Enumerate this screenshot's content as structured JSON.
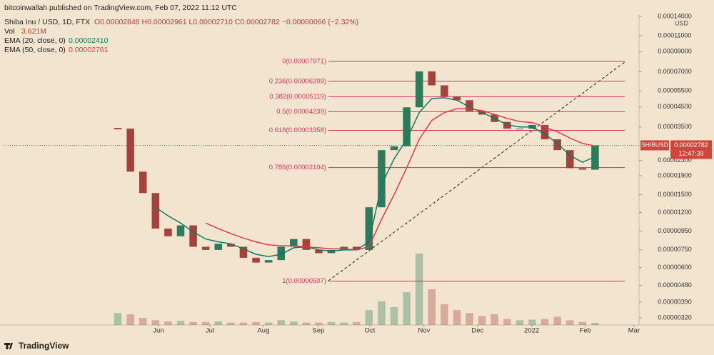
{
  "header": {
    "publisher": "bitcoinwallah published on TradingView.com, Feb 07, 2022 11:12 UTC",
    "symbol": "Shiba Inu / USD, 1D, FTX",
    "ohlc": "O0.00002848 H0.00002961 L0.00002710 C0.00002782 −0.00000066 (−2.32%)",
    "vol_label": "Vol",
    "vol_value": "3.621M",
    "ema20_label": "EMA (20, close, 0)",
    "ema20_value": "0.00002410",
    "ema50_label": "EMA (50, close, 0)",
    "ema50_value": "0.00002761"
  },
  "footer": {
    "brand": "TradingView"
  },
  "chart_data": {
    "type": "candlestick",
    "axis_unit": "USD",
    "price_tag": {
      "symbol": "SHIBUSD",
      "price": "0.00002782",
      "countdown": "12:47:39",
      "value": 2.782e-05
    },
    "categories": [
      null,
      null,
      null,
      null,
      null,
      null,
      null,
      null,
      null,
      null,
      null,
      null,
      null,
      null,
      null,
      null,
      null,
      null,
      null,
      null,
      null,
      null,
      null,
      null,
      null,
      null,
      null,
      null,
      null,
      null,
      null,
      null,
      null,
      null,
      null,
      null,
      null,
      null,
      null
    ],
    "xlim": [
      -9.1,
      41.5
    ],
    "xticks": [
      {
        "value": 3.24,
        "label": "Jun"
      },
      {
        "value": 7.33,
        "label": "Jul"
      },
      {
        "value": 11.59,
        "label": "Aug"
      },
      {
        "value": 15.97,
        "label": "Sep"
      },
      {
        "value": 20.06,
        "label": "Oct"
      },
      {
        "value": 24.38,
        "label": "Nov"
      },
      {
        "value": 28.64,
        "label": "Dec"
      },
      {
        "value": 32.95,
        "label": "2022"
      },
      {
        "value": 37.22,
        "label": "Feb"
      },
      {
        "value": 41.1,
        "label": "Mar"
      }
    ],
    "log_scale": true,
    "ylim": [
      3.2e-06,
      0.00014
    ],
    "yticks": [
      {
        "value": 0.00014,
        "label": "0.00014000"
      },
      {
        "value": 0.00011,
        "label": "0.00011000"
      },
      {
        "value": 9e-05,
        "label": "0.00009000"
      },
      {
        "value": 7e-05,
        "label": "0.00007000"
      },
      {
        "value": 5.5e-05,
        "label": "0.00005500"
      },
      {
        "value": 4.5e-05,
        "label": "0.00004500"
      },
      {
        "value": 3.5e-05,
        "label": "0.00003500"
      },
      {
        "value": 2.3e-05,
        "label": "0.00002300"
      },
      {
        "value": 1.9e-05,
        "label": "0.00001900"
      },
      {
        "value": 1.5e-05,
        "label": "0.00001500"
      },
      {
        "value": 1.2e-05,
        "label": "0.00001200"
      },
      {
        "value": 9.5e-06,
        "label": "0.00000950"
      },
      {
        "value": 7.5e-06,
        "label": "0.00000750"
      },
      {
        "value": 6e-06,
        "label": "0.00000600"
      },
      {
        "value": 4.8e-06,
        "label": "0.00000480"
      },
      {
        "value": 3.9e-06,
        "label": "0.00000390"
      },
      {
        "value": 3.2e-06,
        "label": "0.00000320"
      }
    ],
    "up_color": "#2e7a5c",
    "down_color": "#a4423c",
    "series": [
      {
        "name": "Close",
        "values": [
          3.43e-05,
          2e-05,
          1.53e-05,
          9.8e-06,
          8.9e-06,
          1.02e-05,
          7.8e-06,
          7.5e-06,
          8.1e-06,
          7.8e-06,
          6.8e-06,
          6.4e-06,
          6.6e-06,
          7.8e-06,
          8.6e-06,
          7.5e-06,
          7.2e-06,
          7.5e-06,
          7.8e-06,
          7.5e-06,
          1.28e-05,
          2.62e-05,
          2.75e-05,
          4.48e-05,
          7.03e-05,
          5.9e-05,
          5.14e-05,
          4.9e-05,
          4.27e-05,
          4.09e-05,
          3.73e-05,
          3.43e-05,
          3.43e-05,
          3.59e-05,
          3e-05,
          2.62e-05,
          2.09e-05,
          2.05e-05,
          2.782e-05
        ]
      },
      {
        "name": "EMA (20, close, 0)",
        "color": "#0f7a63",
        "values": [
          null,
          null,
          null,
          1.28e-05,
          1.15e-05,
          1.05e-05,
          9.4e-06,
          8.6e-06,
          8.3e-06,
          8.1e-06,
          7.6e-06,
          7.1e-06,
          6.9e-06,
          7.1e-06,
          7.7e-06,
          7.8e-06,
          7.5e-06,
          7.4e-06,
          7.5e-06,
          7.5e-06,
          8.3e-06,
          1.7e-05,
          2.35e-05,
          3e-05,
          4.2e-05,
          5e-05,
          5.05e-05,
          4.9e-05,
          4.5e-05,
          4.2e-05,
          3.9e-05,
          3.6e-05,
          3.5e-05,
          3.5e-05,
          3.2e-05,
          2.85e-05,
          2.45e-05,
          2.25e-05,
          2.41e-05
        ]
      },
      {
        "name": "EMA (50, close, 0)",
        "color": "#e0394f",
        "values": [
          null,
          null,
          null,
          null,
          null,
          null,
          null,
          1.05e-05,
          9.8e-06,
          9.2e-06,
          8.7e-06,
          8.3e-06,
          8e-06,
          7.9e-06,
          7.9e-06,
          7.8e-06,
          7.7e-06,
          7.6e-06,
          7.6e-06,
          7.5e-06,
          7.8e-06,
          1.1e-05,
          1.5e-05,
          2.1e-05,
          3e-05,
          3.8e-05,
          4.2e-05,
          4.4e-05,
          4.4e-05,
          4.3e-05,
          4.1e-05,
          3.9e-05,
          3.75e-05,
          3.7e-05,
          3.5e-05,
          3.3e-05,
          3.05e-05,
          2.85e-05,
          2.76e-05
        ]
      }
    ],
    "volume": {
      "ylim": [
        0,
        150
      ],
      "values": [
        20,
        18,
        12,
        8,
        6,
        7,
        5,
        5,
        6,
        4,
        4,
        5,
        4,
        8,
        6,
        4,
        4,
        5,
        4,
        5,
        25,
        40,
        30,
        55,
        120,
        60,
        35,
        25,
        20,
        15,
        18,
        10,
        8,
        9,
        10,
        14,
        8,
        5,
        3.621
      ]
    },
    "fib_color": "#d6335f",
    "fib_levels": [
      {
        "value": 7.971e-05,
        "label": "0(0.00007971)"
      },
      {
        "value": 6.209e-05,
        "label": "0.236(0.00006209)"
      },
      {
        "value": 5.119e-05,
        "label": "0.382(0.00005119)"
      },
      {
        "value": 4.239e-05,
        "label": "0.5(0.00004239)"
      },
      {
        "value": 3.358e-05,
        "label": "0.618(0.00003358)"
      },
      {
        "value": 2.104e-05,
        "label": "0.786(0.00002104)"
      },
      {
        "value": 5.07e-06,
        "label": "1(0.00000507)"
      }
    ]
  }
}
